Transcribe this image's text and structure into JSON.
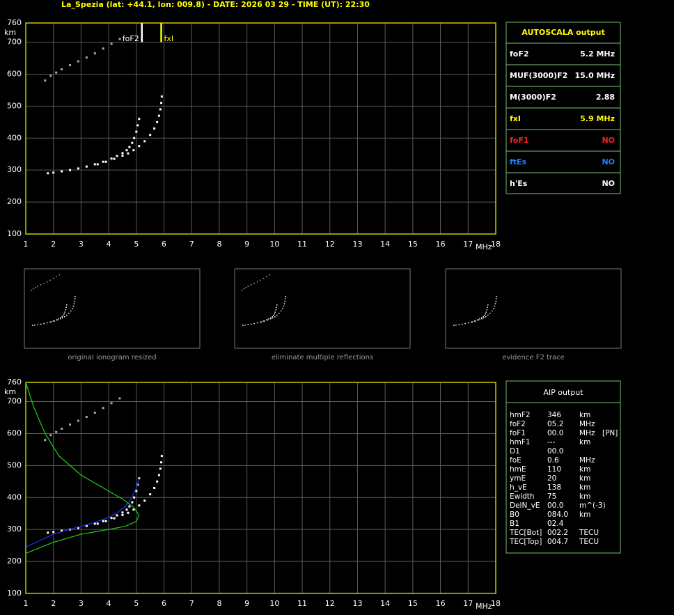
{
  "header": {
    "title": "La_Spezia (lat: +44.1, lon: 009.8) - DATE: 2026 03 29 - TIME (UT): 22:30"
  },
  "chart_data": [
    {
      "type": "scatter",
      "xlabel": "MHz",
      "ylabel": "km",
      "xlim": [
        1,
        18
      ],
      "ylim": [
        100,
        760
      ],
      "xticks": [
        1,
        2,
        3,
        4,
        5,
        6,
        7,
        8,
        9,
        10,
        11,
        12,
        13,
        14,
        15,
        16,
        17,
        18
      ],
      "yticks": [
        100,
        200,
        300,
        400,
        500,
        600,
        700,
        760
      ],
      "grid": true,
      "frame_color": "#c8c800",
      "markers": [
        {
          "label": "foF2",
          "x": 5.2,
          "color": "#ffffff"
        },
        {
          "label": "fxI",
          "x": 5.9,
          "color": "#ffff00"
        }
      ],
      "series": [
        {
          "color": "#ffffff",
          "x": [
            1.8,
            2.0,
            2.3,
            2.6,
            2.9,
            3.2,
            3.5,
            3.8,
            4.1,
            4.3,
            4.5,
            4.65,
            4.75,
            4.85,
            4.92,
            5.0,
            5.05,
            5.1
          ],
          "values": [
            290,
            292,
            296,
            300,
            305,
            311,
            318,
            326,
            336,
            344,
            353,
            362,
            372,
            385,
            400,
            420,
            440,
            460
          ]
        },
        {
          "color": "#ffffff",
          "x": [
            3.6,
            3.9,
            4.2,
            4.5,
            4.7,
            4.9,
            5.1,
            5.3,
            5.5,
            5.65,
            5.75,
            5.82,
            5.87,
            5.9,
            5.92
          ],
          "values": [
            318,
            326,
            335,
            345,
            352,
            362,
            375,
            390,
            410,
            430,
            450,
            470,
            490,
            510,
            530
          ]
        },
        {
          "color": "#aaaaaa",
          "x": [
            1.7,
            1.9,
            2.1,
            2.3,
            2.6,
            2.9,
            3.2,
            3.5,
            3.8,
            4.1,
            4.4
          ],
          "values": [
            580,
            595,
            605,
            615,
            628,
            640,
            652,
            665,
            680,
            695,
            710
          ]
        }
      ]
    },
    {
      "type": "scatter",
      "xlabel": "MHz",
      "ylabel": "km",
      "xlim": [
        1,
        18
      ],
      "ylim": [
        100,
        760
      ],
      "xticks": [
        1,
        2,
        3,
        4,
        5,
        6,
        7,
        8,
        9,
        10,
        11,
        12,
        13,
        14,
        15,
        16,
        17,
        18
      ],
      "yticks": [
        100,
        200,
        300,
        400,
        500,
        600,
        700,
        760
      ],
      "grid": true,
      "frame_color": "#c8c800",
      "series": [
        {
          "color": "#ffffff",
          "x": [
            1.8,
            2.0,
            2.3,
            2.6,
            2.9,
            3.2,
            3.5,
            3.8,
            4.1,
            4.3,
            4.5,
            4.65,
            4.75,
            4.85,
            4.92,
            5.0,
            5.05,
            5.1
          ],
          "values": [
            290,
            292,
            296,
            300,
            305,
            311,
            318,
            326,
            336,
            344,
            353,
            362,
            372,
            385,
            400,
            420,
            440,
            460
          ]
        },
        {
          "color": "#ffffff",
          "x": [
            3.6,
            3.9,
            4.2,
            4.5,
            4.7,
            4.9,
            5.1,
            5.3,
            5.5,
            5.65,
            5.75,
            5.82,
            5.87,
            5.9,
            5.92
          ],
          "values": [
            318,
            326,
            335,
            345,
            352,
            362,
            375,
            390,
            410,
            430,
            450,
            470,
            490,
            510,
            530
          ]
        },
        {
          "color": "#aaaaaa",
          "x": [
            1.7,
            1.9,
            2.1,
            2.3,
            2.6,
            2.9,
            3.2,
            3.5,
            3.8,
            4.1,
            4.4
          ],
          "values": [
            580,
            595,
            605,
            615,
            628,
            640,
            652,
            665,
            680,
            695,
            710
          ]
        },
        {
          "color": "#2030ff",
          "style": "line",
          "x": [
            1.0,
            1.5,
            2.0,
            2.5,
            3.0,
            3.5,
            4.0,
            4.3,
            4.6,
            4.8,
            5.0,
            5.1
          ],
          "values": [
            245,
            265,
            285,
            298,
            310,
            322,
            338,
            352,
            372,
            395,
            430,
            460
          ]
        },
        {
          "color": "#20d020",
          "style": "line",
          "x": [
            1.0,
            1.3,
            1.7,
            2.2,
            3.0,
            3.8,
            4.5,
            4.9,
            5.1,
            5.0,
            4.6,
            4.0,
            3.0,
            2.0,
            1.0
          ],
          "values": [
            760,
            680,
            600,
            530,
            470,
            430,
            395,
            370,
            345,
            325,
            310,
            300,
            285,
            260,
            225
          ]
        }
      ]
    }
  ],
  "thumbnails": [
    "original ionogram resized",
    "eliminate multiple reflections",
    "evidence F2 trace"
  ],
  "autoscala": {
    "title": "AUTOSCALA output",
    "rows": [
      {
        "label": "foF2",
        "value": "5.2 MHz",
        "color": "#ffffff"
      },
      {
        "label": "MUF(3000)F2",
        "value": "15.0 MHz",
        "color": "#ffffff"
      },
      {
        "label": "M(3000)F2",
        "value": "2.88",
        "color": "#ffffff"
      },
      {
        "label": "fxI",
        "value": "5.9 MHz",
        "color": "#ffff00"
      },
      {
        "label": "foF1",
        "value": "NO",
        "color": "#ff2020"
      },
      {
        "label": "ftEs",
        "value": "NO",
        "color": "#2080ff"
      },
      {
        "label": "h'Es",
        "value": "NO",
        "color": "#ffffff"
      }
    ]
  },
  "aip": {
    "title": "AIP output",
    "rows": [
      [
        "hmF2",
        "346",
        "km"
      ],
      [
        "foF2",
        "05.2",
        "MHz"
      ],
      [
        "foF1",
        "00.0",
        "MHz",
        "[PN]"
      ],
      [
        "hmF1",
        "---",
        "km"
      ],
      [
        "D1",
        "00.0"
      ],
      [
        "foE",
        "0.6",
        "MHz"
      ],
      [
        "hmE",
        "110",
        "km"
      ],
      [
        "ymE",
        "20",
        "km"
      ],
      [
        "h_vE",
        "138",
        "km"
      ],
      [
        "Ewidth",
        "75",
        "km"
      ],
      [
        "DelN_vE",
        "00.0",
        "m^(-3)"
      ],
      [
        "B0",
        "084.0",
        "km"
      ],
      [
        "B1",
        "02.4"
      ],
      [
        "TEC[Bot]",
        "002.2",
        "TECU"
      ],
      [
        "TEC[Top]",
        "004.7",
        "TECU"
      ]
    ]
  }
}
